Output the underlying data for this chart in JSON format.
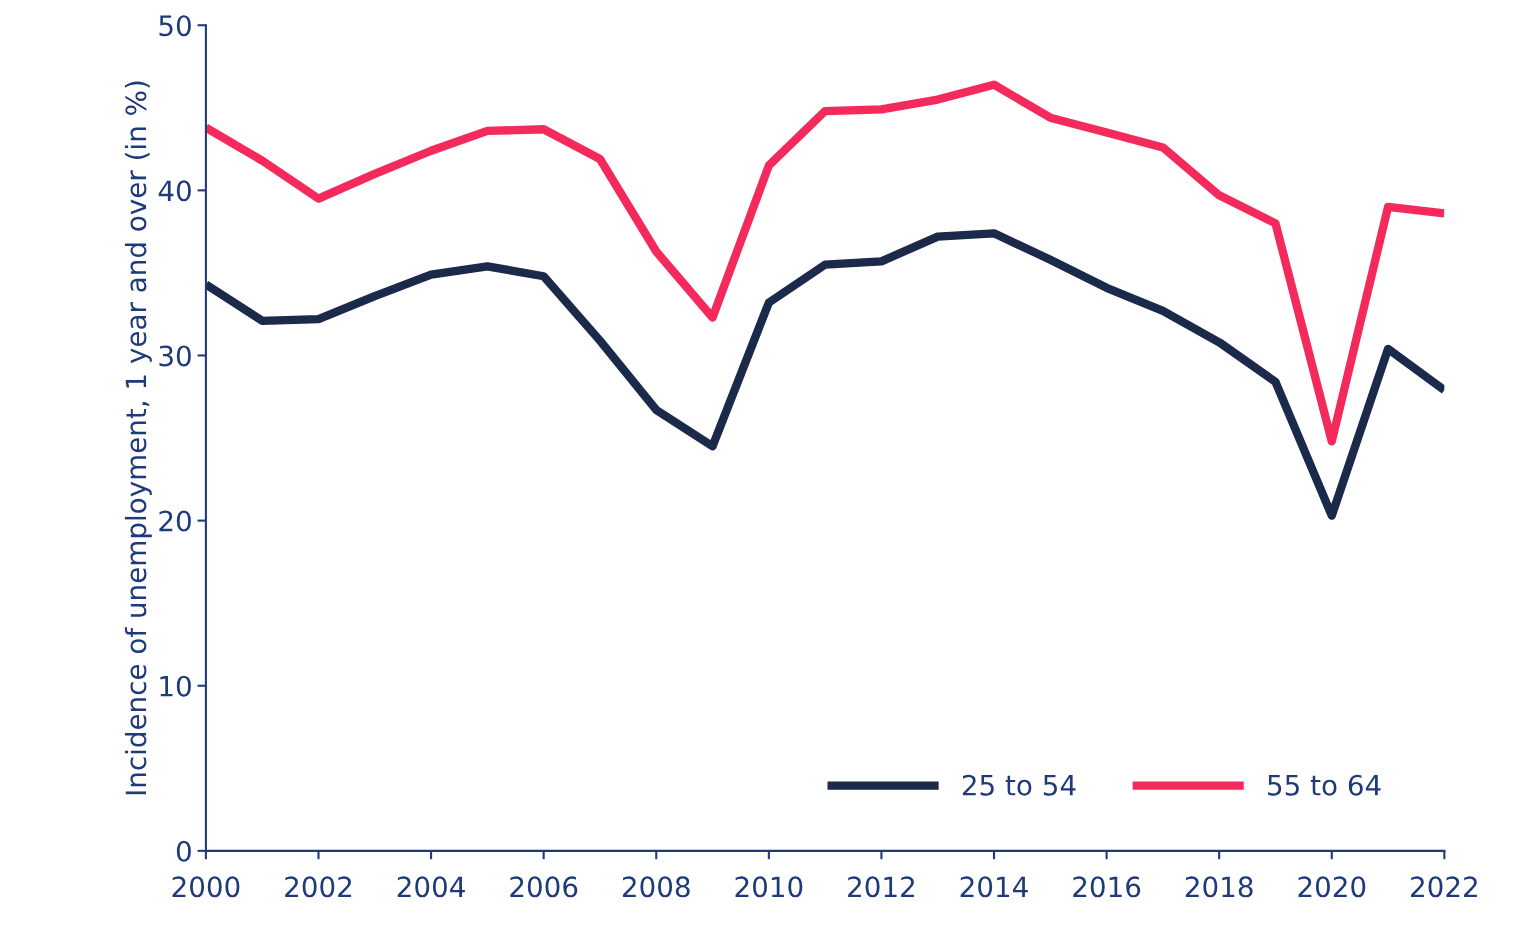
{
  "chart_data": {
    "type": "line",
    "ylabel": "Incidence of unemployment, 1 year and over (in %)",
    "x": [
      2000,
      2001,
      2002,
      2003,
      2004,
      2005,
      2006,
      2007,
      2008,
      2009,
      2010,
      2011,
      2012,
      2013,
      2014,
      2015,
      2016,
      2017,
      2018,
      2019,
      2020,
      2021,
      2022
    ],
    "series": [
      {
        "name": "25 to 54",
        "color": "#1b2a4a",
        "values": [
          34.3,
          32.1,
          32.2,
          33.6,
          34.9,
          35.4,
          34.8,
          30.9,
          26.7,
          24.5,
          33.2,
          35.5,
          35.7,
          37.2,
          37.4,
          35.8,
          34.1,
          32.7,
          30.8,
          28.4,
          20.3,
          30.4,
          27.9
        ]
      },
      {
        "name": "55 to 64",
        "color": "#f42a5c",
        "values": [
          43.8,
          41.8,
          39.5,
          41.0,
          42.4,
          43.6,
          43.7,
          41.9,
          36.3,
          32.3,
          41.5,
          44.8,
          44.9,
          45.5,
          46.4,
          44.4,
          43.5,
          42.6,
          39.7,
          38.0,
          24.8,
          39.0,
          38.6
        ]
      }
    ],
    "xlim": [
      2000,
      2022
    ],
    "xticks": [
      2000,
      2002,
      2004,
      2006,
      2008,
      2010,
      2012,
      2014,
      2016,
      2018,
      2020,
      2022
    ],
    "ylim": [
      0,
      50
    ],
    "yticks": [
      0,
      10,
      20,
      30,
      40,
      50
    ],
    "grid": false,
    "legend": "bottom right",
    "marker": "none",
    "line_style": "solid"
  }
}
